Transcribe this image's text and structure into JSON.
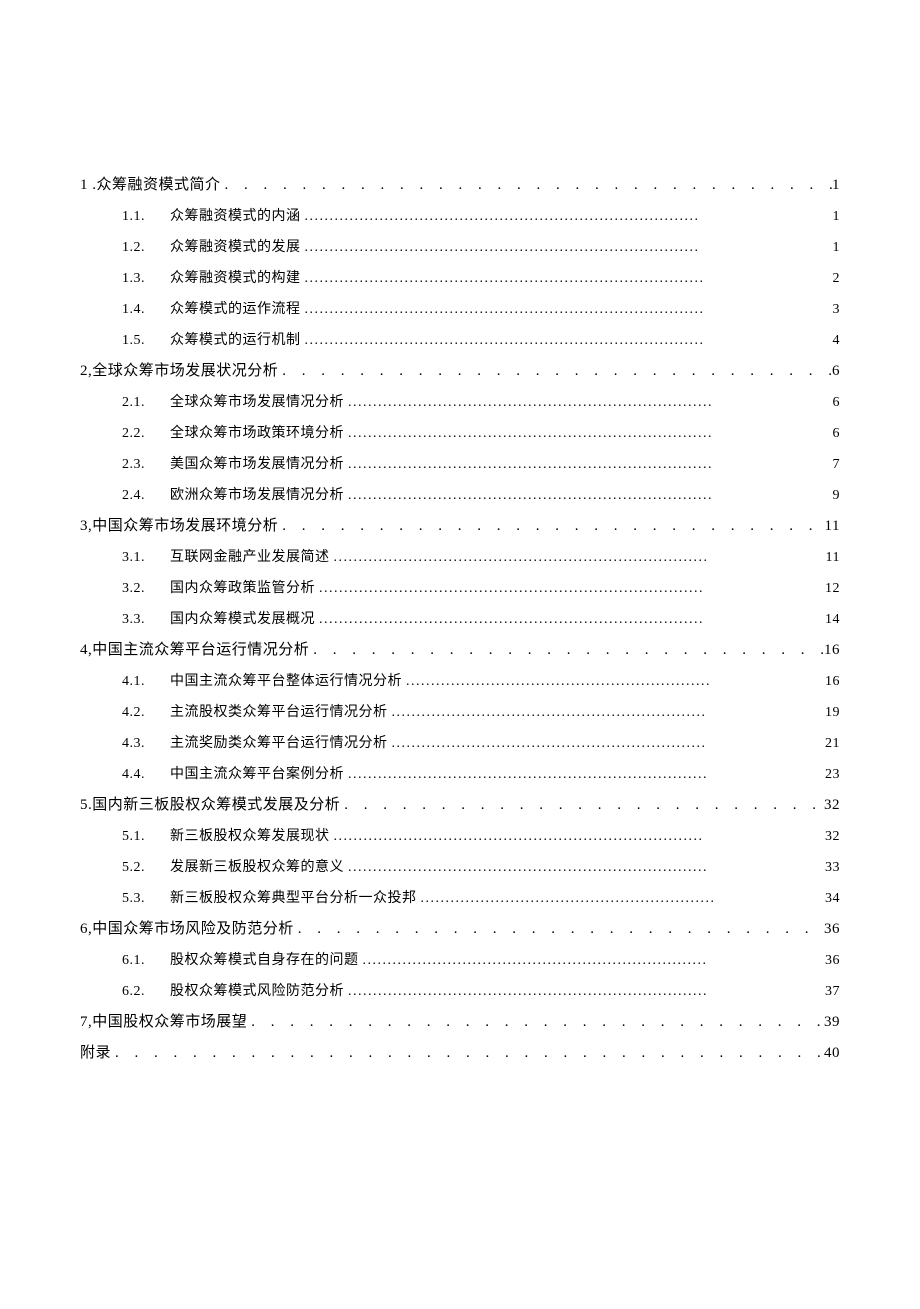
{
  "toc": {
    "entries": [
      {
        "level": 1,
        "num": "1 .",
        "title": "众筹融资模式简介",
        "page": "1",
        "leader": ". . . . . . . . . . . . . . . . . . . . . . . . . . . . . . . . . . . . . . . . . . . . . . . . . ."
      },
      {
        "level": 2,
        "num": "1.1.",
        "title": "众筹融资模式的内涵",
        "page": "1",
        "leader": "..............................................................................."
      },
      {
        "level": 2,
        "num": "1.2.",
        "title": "众筹融资模式的发展",
        "page": "1",
        "leader": "..............................................................................."
      },
      {
        "level": 2,
        "num": "1.3.",
        "title": "众筹融资模式的构建",
        "page": "2",
        "leader": "................................................................................"
      },
      {
        "level": 2,
        "num": "1.4.",
        "title": "众筹模式的运作流程",
        "page": "3",
        "leader": "................................................................................"
      },
      {
        "level": 2,
        "num": "1.5.",
        "title": "众筹模式的运行机制",
        "page": "4",
        "leader": "................................................................................"
      },
      {
        "level": 1,
        "num": "2,",
        "title": "全球众筹市场发展状况分析",
        "page": "6",
        "leader": ". . . . . . . . . . . . . . . . . . . . . . . . . . . . . . . . . . . . . . ."
      },
      {
        "level": 2,
        "num": "2.1.",
        "title": "全球众筹市场发展情况分析",
        "page": "6",
        "leader": "........................................................................."
      },
      {
        "level": 2,
        "num": "2.2.",
        "title": "全球众筹市场政策环境分析",
        "page": "6",
        "leader": "........................................................................."
      },
      {
        "level": 2,
        "num": "2.3.",
        "title": "美国众筹市场发展情况分析",
        "page": "7",
        "leader": "........................................................................."
      },
      {
        "level": 2,
        "num": "2.4.",
        "title": "欧洲众筹市场发展情况分析",
        "page": "9",
        "leader": "........................................................................."
      },
      {
        "level": 1,
        "num": "3,",
        "title": "中国众筹市场发展环境分析",
        "page": "11",
        "leader": ". . . . . . . . . . . . . . . . . . . . . . . . . . . . . . . . . . . . . . ."
      },
      {
        "level": 2,
        "num": "3.1.",
        "title": "互联网金融产业发展简述",
        "page": "11",
        "leader": "..........................................................................."
      },
      {
        "level": 2,
        "num": "3.2.",
        "title": "国内众筹政策监管分析",
        "page": "12",
        "leader": "............................................................................."
      },
      {
        "level": 2,
        "num": "3.3.",
        "title": "国内众筹模式发展概况",
        "page": "14",
        "leader": "............................................................................."
      },
      {
        "level": 1,
        "num": "4,",
        "title": "中国主流众筹平台运行情况分析",
        "page": "16",
        "leader": ". . . . . . . . . . . . . . . . . . . . . . . . . . . . . . . . . . . ."
      },
      {
        "level": 2,
        "num": "4.1.",
        "title": "中国主流众筹平台整体运行情况分析",
        "page": "16",
        "leader": "............................................................."
      },
      {
        "level": 2,
        "num": "4.2.",
        "title": "主流股权类众筹平台运行情况分析",
        "page": "19",
        "leader": "..............................................................."
      },
      {
        "level": 2,
        "num": "4.3.",
        "title": "主流奖励类众筹平台运行情况分析",
        "page": "21",
        "leader": "..............................................................."
      },
      {
        "level": 2,
        "num": "4.4.",
        "title": "中国主流众筹平台案例分析",
        "page": "23",
        "leader": "........................................................................"
      },
      {
        "level": 1,
        "num": "5.",
        "title": "国内新三板股权众筹模式发展及分析",
        "page": "32",
        "leader": ". . . . . . . . . . . . . . . . . . . . . . . . . . . . . . . . . ."
      },
      {
        "level": 2,
        "num": "5.1.",
        "title": "新三板股权众筹发展现状",
        "page": "32",
        "leader": ".........................................................................."
      },
      {
        "level": 2,
        "num": "5.2.",
        "title": "发展新三板股权众筹的意义",
        "page": "33",
        "leader": "........................................................................"
      },
      {
        "level": 2,
        "num": "5.3.",
        "title": "新三板股权众筹典型平台分析一众投邦",
        "page": "34",
        "leader": "..........................................................."
      },
      {
        "level": 1,
        "num": "6,",
        "title": "中国众筹市场风险及防范分析",
        "page": "36",
        "leader": ". . . . . . . . . . . . . . . . . . . . . . . . . . . . . . . . . . . . ."
      },
      {
        "level": 2,
        "num": "6.1.",
        "title": "股权众筹模式自身存在的问题",
        "page": "36",
        "leader": "....................................................................."
      },
      {
        "level": 2,
        "num": "6.2.",
        "title": "股权众筹模式风险防范分析",
        "page": "37",
        "leader": "........................................................................"
      },
      {
        "level": 1,
        "num": "7,",
        "title": "中国股权众筹市场展望",
        "page": "39",
        "leader": ". . . . . . . . . . . . . . . . . . . . . . . . . . . . . . . . . . . . . . . . . ."
      },
      {
        "level": 1,
        "num": "",
        "title": "附录",
        "page": " 40",
        "leader": ". . . . . . . . . . . . . . . . . . . . . . . . . . . . . . . . . . . . . . . . . . . . . . . . . . . . . . ."
      }
    ]
  }
}
